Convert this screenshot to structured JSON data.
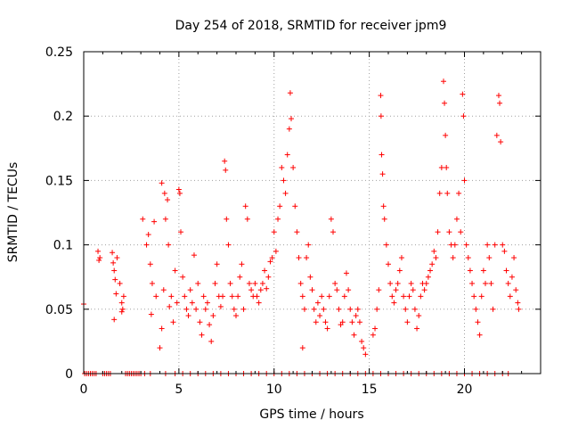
{
  "chart_data": {
    "type": "scatter",
    "title": "Day 254 of 2018, SRMTID for receiver jpm9",
    "xlabel": "GPS time / hours",
    "ylabel": "SRMTID / TECUs",
    "xlim": [
      0,
      24
    ],
    "ylim": [
      0,
      0.25
    ],
    "x_ticks": [
      0,
      5,
      10,
      15,
      20
    ],
    "x_tick_labels": [
      "0",
      "5",
      "10",
      "15",
      "20"
    ],
    "y_ticks": [
      0,
      0.05,
      0.1,
      0.15,
      0.2,
      0.25
    ],
    "y_tick_labels": [
      "0",
      "0.05",
      "0.1",
      "0.15",
      "0.2",
      "0.25"
    ],
    "grid": true,
    "marker": "+",
    "marker_color": "#ff0000",
    "series": [
      {
        "name": "SRMTID",
        "points": [
          [
            0.0,
            0.054
          ],
          [
            0.75,
            0.095
          ],
          [
            0.8,
            0.088
          ],
          [
            0.85,
            0.09
          ],
          [
            1.5,
            0.094
          ],
          [
            1.55,
            0.086
          ],
          [
            1.6,
            0.08
          ],
          [
            1.65,
            0.073
          ],
          [
            1.7,
            0.062
          ],
          [
            1.6,
            0.042
          ],
          [
            1.75,
            0.09
          ],
          [
            1.9,
            0.07
          ],
          [
            2.0,
            0.055
          ],
          [
            2.05,
            0.05
          ],
          [
            2.1,
            0.06
          ],
          [
            2.0,
            0.048
          ],
          [
            3.1,
            0.12
          ],
          [
            3.3,
            0.1
          ],
          [
            3.4,
            0.108
          ],
          [
            3.5,
            0.085
          ],
          [
            3.6,
            0.07
          ],
          [
            3.55,
            0.046
          ],
          [
            3.7,
            0.118
          ],
          [
            3.8,
            0.06
          ],
          [
            4.0,
            0.02
          ],
          [
            4.1,
            0.035
          ],
          [
            4.2,
            0.065
          ],
          [
            4.1,
            0.148
          ],
          [
            4.25,
            0.14
          ],
          [
            4.3,
            0.12
          ],
          [
            4.4,
            0.135
          ],
          [
            4.45,
            0.1
          ],
          [
            4.5,
            0.052
          ],
          [
            4.6,
            0.06
          ],
          [
            4.7,
            0.04
          ],
          [
            4.8,
            0.08
          ],
          [
            4.9,
            0.055
          ],
          [
            5.0,
            0.143
          ],
          [
            5.05,
            0.14
          ],
          [
            5.1,
            0.11
          ],
          [
            5.2,
            0.075
          ],
          [
            5.3,
            0.06
          ],
          [
            5.4,
            0.05
          ],
          [
            5.5,
            0.045
          ],
          [
            5.6,
            0.065
          ],
          [
            5.7,
            0.055
          ],
          [
            5.8,
            0.092
          ],
          [
            5.9,
            0.05
          ],
          [
            6.0,
            0.07
          ],
          [
            6.1,
            0.04
          ],
          [
            6.2,
            0.03
          ],
          [
            6.3,
            0.06
          ],
          [
            6.4,
            0.05
          ],
          [
            6.5,
            0.055
          ],
          [
            6.6,
            0.038
          ],
          [
            6.7,
            0.025
          ],
          [
            6.8,
            0.045
          ],
          [
            6.9,
            0.07
          ],
          [
            7.0,
            0.085
          ],
          [
            7.1,
            0.06
          ],
          [
            7.2,
            0.052
          ],
          [
            7.3,
            0.06
          ],
          [
            7.4,
            0.165
          ],
          [
            7.45,
            0.158
          ],
          [
            7.5,
            0.12
          ],
          [
            7.6,
            0.1
          ],
          [
            7.7,
            0.07
          ],
          [
            7.8,
            0.06
          ],
          [
            7.9,
            0.05
          ],
          [
            8.0,
            0.045
          ],
          [
            8.1,
            0.06
          ],
          [
            8.2,
            0.075
          ],
          [
            8.3,
            0.085
          ],
          [
            8.4,
            0.05
          ],
          [
            8.5,
            0.13
          ],
          [
            8.6,
            0.12
          ],
          [
            8.7,
            0.07
          ],
          [
            8.8,
            0.065
          ],
          [
            8.9,
            0.06
          ],
          [
            9.0,
            0.07
          ],
          [
            9.1,
            0.06
          ],
          [
            9.2,
            0.055
          ],
          [
            9.3,
            0.065
          ],
          [
            9.4,
            0.07
          ],
          [
            9.5,
            0.08
          ],
          [
            9.6,
            0.066
          ],
          [
            9.7,
            0.075
          ],
          [
            9.8,
            0.087
          ],
          [
            9.9,
            0.09
          ],
          [
            10.0,
            0.11
          ],
          [
            10.1,
            0.095
          ],
          [
            10.2,
            0.12
          ],
          [
            10.3,
            0.13
          ],
          [
            10.4,
            0.16
          ],
          [
            10.5,
            0.15
          ],
          [
            10.6,
            0.14
          ],
          [
            10.7,
            0.17
          ],
          [
            10.8,
            0.19
          ],
          [
            10.85,
            0.218
          ],
          [
            10.9,
            0.198
          ],
          [
            11.0,
            0.16
          ],
          [
            11.1,
            0.13
          ],
          [
            11.2,
            0.11
          ],
          [
            11.3,
            0.09
          ],
          [
            11.4,
            0.07
          ],
          [
            11.5,
            0.06
          ],
          [
            11.6,
            0.05
          ],
          [
            11.5,
            0.02
          ],
          [
            11.7,
            0.09
          ],
          [
            11.8,
            0.1
          ],
          [
            11.9,
            0.075
          ],
          [
            12.0,
            0.065
          ],
          [
            12.1,
            0.05
          ],
          [
            12.2,
            0.04
          ],
          [
            12.3,
            0.055
          ],
          [
            12.4,
            0.045
          ],
          [
            12.5,
            0.06
          ],
          [
            12.6,
            0.05
          ],
          [
            12.7,
            0.04
          ],
          [
            12.8,
            0.035
          ],
          [
            12.9,
            0.06
          ],
          [
            13.0,
            0.12
          ],
          [
            13.1,
            0.11
          ],
          [
            13.2,
            0.07
          ],
          [
            13.3,
            0.065
          ],
          [
            13.4,
            0.05
          ],
          [
            13.5,
            0.038
          ],
          [
            13.6,
            0.04
          ],
          [
            13.7,
            0.06
          ],
          [
            13.8,
            0.078
          ],
          [
            13.9,
            0.065
          ],
          [
            14.0,
            0.05
          ],
          [
            14.1,
            0.04
          ],
          [
            14.2,
            0.03
          ],
          [
            14.3,
            0.045
          ],
          [
            14.4,
            0.05
          ],
          [
            14.5,
            0.04
          ],
          [
            14.6,
            0.025
          ],
          [
            14.7,
            0.02
          ],
          [
            14.8,
            0.015
          ],
          [
            15.2,
            0.03
          ],
          [
            15.3,
            0.035
          ],
          [
            15.4,
            0.05
          ],
          [
            15.5,
            0.065
          ],
          [
            15.6,
            0.216
          ],
          [
            15.62,
            0.2
          ],
          [
            15.65,
            0.17
          ],
          [
            15.7,
            0.155
          ],
          [
            15.75,
            0.13
          ],
          [
            15.8,
            0.12
          ],
          [
            15.9,
            0.1
          ],
          [
            16.0,
            0.085
          ],
          [
            16.1,
            0.07
          ],
          [
            16.2,
            0.06
          ],
          [
            16.3,
            0.055
          ],
          [
            16.4,
            0.065
          ],
          [
            16.5,
            0.07
          ],
          [
            16.6,
            0.08
          ],
          [
            16.7,
            0.09
          ],
          [
            16.8,
            0.06
          ],
          [
            16.9,
            0.05
          ],
          [
            17.0,
            0.04
          ],
          [
            17.1,
            0.06
          ],
          [
            17.2,
            0.07
          ],
          [
            17.3,
            0.065
          ],
          [
            17.4,
            0.05
          ],
          [
            17.5,
            0.035
          ],
          [
            17.6,
            0.045
          ],
          [
            17.7,
            0.06
          ],
          [
            17.8,
            0.07
          ],
          [
            17.9,
            0.065
          ],
          [
            18.0,
            0.07
          ],
          [
            18.1,
            0.075
          ],
          [
            18.2,
            0.08
          ],
          [
            18.3,
            0.085
          ],
          [
            18.4,
            0.095
          ],
          [
            18.5,
            0.09
          ],
          [
            18.6,
            0.11
          ],
          [
            18.7,
            0.14
          ],
          [
            18.8,
            0.16
          ],
          [
            18.9,
            0.227
          ],
          [
            18.95,
            0.21
          ],
          [
            19.0,
            0.185
          ],
          [
            19.05,
            0.16
          ],
          [
            19.1,
            0.14
          ],
          [
            19.2,
            0.11
          ],
          [
            19.3,
            0.1
          ],
          [
            19.4,
            0.09
          ],
          [
            19.5,
            0.1
          ],
          [
            19.6,
            0.12
          ],
          [
            19.7,
            0.14
          ],
          [
            19.8,
            0.11
          ],
          [
            19.9,
            0.217
          ],
          [
            19.95,
            0.2
          ],
          [
            20.0,
            0.15
          ],
          [
            20.1,
            0.1
          ],
          [
            20.2,
            0.09
          ],
          [
            20.3,
            0.08
          ],
          [
            20.4,
            0.07
          ],
          [
            20.5,
            0.06
          ],
          [
            20.6,
            0.05
          ],
          [
            20.7,
            0.04
          ],
          [
            20.8,
            0.03
          ],
          [
            20.9,
            0.06
          ],
          [
            21.0,
            0.08
          ],
          [
            21.1,
            0.07
          ],
          [
            21.2,
            0.1
          ],
          [
            21.3,
            0.09
          ],
          [
            21.4,
            0.07
          ],
          [
            21.5,
            0.05
          ],
          [
            21.6,
            0.1
          ],
          [
            21.7,
            0.185
          ],
          [
            21.8,
            0.216
          ],
          [
            21.85,
            0.21
          ],
          [
            21.9,
            0.18
          ],
          [
            22.0,
            0.1
          ],
          [
            22.1,
            0.095
          ],
          [
            22.2,
            0.08
          ],
          [
            22.3,
            0.07
          ],
          [
            22.4,
            0.06
          ],
          [
            22.5,
            0.075
          ],
          [
            22.6,
            0.09
          ],
          [
            22.7,
            0.065
          ],
          [
            22.8,
            0.055
          ],
          [
            22.85,
            0.05
          ]
        ],
        "zero_points": [
          0.05,
          0.15,
          0.25,
          0.35,
          0.45,
          0.55,
          0.65,
          1.0,
          1.1,
          1.2,
          1.3,
          1.4,
          2.2,
          2.3,
          2.4,
          2.5,
          2.6,
          2.7,
          2.8,
          2.9,
          3.0,
          3.2,
          3.5,
          4.3,
          4.8,
          5.2,
          5.6,
          6.0,
          6.4,
          6.8,
          7.2,
          7.6,
          8.0,
          8.4,
          8.8,
          9.2,
          9.6,
          10.0,
          10.4,
          10.8,
          11.2,
          11.6,
          12.0,
          12.4,
          12.8,
          13.2,
          13.6,
          14.0,
          14.4,
          14.8,
          15.2,
          15.6,
          16.0,
          16.4,
          16.8,
          17.2,
          17.6,
          18.0,
          18.4,
          18.8,
          19.2,
          19.6,
          20.0,
          20.4,
          20.8,
          21.2,
          21.6,
          22.0,
          22.3
        ]
      }
    ]
  }
}
